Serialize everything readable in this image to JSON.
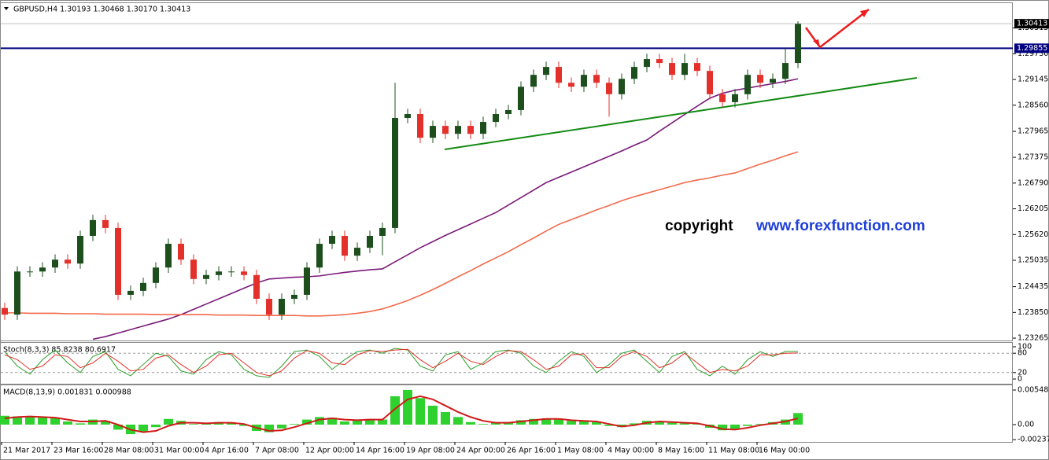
{
  "header": "GBPUSD,H4  1.30193 1.30468 1.30170 1.30413",
  "copyright": {
    "word": "copyright",
    "site": "www.forexfunction.com"
  },
  "chart_data": [
    {
      "type": "candlestick",
      "categories": [
        "21 Mar 2017",
        null,
        null,
        null,
        "23 Mar 16:00",
        null,
        null,
        null,
        "28 Mar 08:00",
        null,
        null,
        null,
        "31 Mar 00:00",
        null,
        null,
        null,
        "4 Apr 16:00",
        null,
        null,
        null,
        "7 Apr 08:00",
        null,
        null,
        null,
        "12 Apr 00:00",
        null,
        null,
        null,
        "14 Apr 16:00",
        null,
        null,
        null,
        "19 Apr 08:00",
        null,
        null,
        null,
        "24 Apr 00:00",
        null,
        null,
        null,
        "26 Apr 16:00",
        null,
        null,
        null,
        "1 May 08:00",
        null,
        null,
        null,
        "4 May 00:00",
        null,
        null,
        null,
        "8 May 16:00",
        null,
        null,
        null,
        "11 May 08:00",
        null,
        null,
        null,
        "16 May 00:00",
        null,
        null,
        null
      ],
      "open": [
        1.2395,
        1.238,
        1.2478,
        1.2478,
        1.2487,
        1.2505,
        1.2496,
        1.2559,
        1.2595,
        1.2577,
        1.2425,
        1.2434,
        1.2452,
        1.2487,
        1.2541,
        1.2505,
        1.2461,
        1.247,
        1.2478,
        1.2478,
        1.247,
        1.2416,
        1.238,
        1.2416,
        1.2425,
        1.2487,
        1.2541,
        1.2559,
        1.2514,
        1.2532,
        1.2559,
        1.2577,
        1.2827,
        1.2836,
        1.2782,
        1.2809,
        1.2791,
        1.2809,
        1.2791,
        1.2818,
        1.2836,
        1.2845,
        1.2898,
        1.2925,
        1.2943,
        1.2907,
        1.2898,
        1.2925,
        1.2907,
        1.2881,
        1.2916,
        1.2943,
        1.2961,
        1.2952,
        1.2925,
        1.2952,
        1.2934,
        1.2881,
        1.2863,
        1.2881,
        1.2925,
        1.2907,
        1.2916,
        1.2952
      ],
      "high": [
        1.2407,
        1.249,
        1.249,
        1.2499,
        1.2517,
        1.2517,
        1.2571,
        1.2607,
        1.2607,
        1.2589,
        1.2446,
        1.2464,
        1.2499,
        1.2553,
        1.2553,
        1.2517,
        1.2482,
        1.249,
        1.249,
        1.249,
        1.2482,
        1.2428,
        1.2428,
        1.2437,
        1.2499,
        1.2553,
        1.2571,
        1.2571,
        1.2544,
        1.2571,
        1.2589,
        1.2907,
        1.2848,
        1.2848,
        1.2821,
        1.2821,
        1.2821,
        1.2821,
        1.283,
        1.2848,
        1.2857,
        1.291,
        1.2937,
        1.2955,
        1.2955,
        1.2919,
        1.2937,
        1.2937,
        1.2919,
        1.2928,
        1.2955,
        1.2973,
        1.2973,
        1.2964,
        1.2973,
        1.2964,
        1.2946,
        1.2893,
        1.2893,
        1.2937,
        1.2937,
        1.2928,
        1.2985,
        1.3047
      ],
      "low": [
        1.2368,
        1.2368,
        1.2466,
        1.2466,
        1.2475,
        1.2484,
        1.2484,
        1.2547,
        1.2565,
        1.2413,
        1.2413,
        1.2422,
        1.244,
        1.2475,
        1.2493,
        1.2449,
        1.2449,
        1.2458,
        1.2466,
        1.2458,
        1.2404,
        1.2368,
        1.2368,
        1.2404,
        1.2413,
        1.2475,
        1.2529,
        1.2502,
        1.2502,
        1.252,
        1.2515,
        1.2565,
        1.2815,
        1.277,
        1.277,
        1.2779,
        1.2779,
        1.2779,
        1.2779,
        1.2806,
        1.2824,
        1.2833,
        1.2886,
        1.2913,
        1.2895,
        1.2886,
        1.2886,
        1.2895,
        1.283,
        1.2869,
        1.2904,
        1.2931,
        1.294,
        1.2913,
        1.2913,
        1.2922,
        1.2869,
        1.2851,
        1.2851,
        1.2869,
        1.2895,
        1.2895,
        1.2904,
        1.294
      ],
      "close": [
        1.238,
        1.2478,
        1.2478,
        1.2487,
        1.2505,
        1.2496,
        1.2559,
        1.2595,
        1.2577,
        1.2425,
        1.2434,
        1.2452,
        1.2487,
        1.2541,
        1.2505,
        1.2461,
        1.247,
        1.2478,
        1.2478,
        1.247,
        1.2416,
        1.238,
        1.2416,
        1.2425,
        1.2487,
        1.2541,
        1.2559,
        1.2514,
        1.2532,
        1.2559,
        1.2577,
        1.2827,
        1.2836,
        1.2782,
        1.2809,
        1.2791,
        1.2809,
        1.2791,
        1.2818,
        1.2836,
        1.2845,
        1.2898,
        1.2925,
        1.2943,
        1.2907,
        1.2898,
        1.2925,
        1.2907,
        1.2881,
        1.2916,
        1.2943,
        1.2961,
        1.2952,
        1.2925,
        1.2952,
        1.2934,
        1.2881,
        1.2863,
        1.2881,
        1.2925,
        1.2907,
        1.2916,
        1.2952,
        1.3041
      ],
      "up_color": "#1d4f1d",
      "down_color": "#e3302a",
      "lines": [
        {
          "color": "#7a1b7a",
          "values": [
            null,
            null,
            null,
            null,
            null,
            null,
            null,
            1.2324,
            1.233,
            1.2338,
            1.2346,
            1.2354,
            1.2362,
            1.237,
            1.238,
            1.2392,
            1.2404,
            1.2416,
            1.2428,
            1.244,
            1.2452,
            1.2461,
            1.2463,
            1.2465,
            1.2466,
            1.2468,
            1.2472,
            1.2476,
            1.2479,
            1.2482,
            1.2484,
            1.25,
            1.2516,
            1.2532,
            1.2546,
            1.256,
            1.2573,
            1.2586,
            1.2599,
            1.2612,
            1.2629,
            1.2646,
            1.2663,
            1.268,
            1.2692,
            1.2704,
            1.2716,
            1.2728,
            1.274,
            1.2752,
            1.2765,
            1.2777,
            1.2797,
            1.2816,
            1.2835,
            1.2854,
            1.2872,
            1.2883,
            1.289,
            1.2895,
            1.29,
            1.2905,
            1.291,
            1.2916
          ]
        },
        {
          "color": "#f26a4b",
          "values": [
            1.2384,
            1.2384,
            1.2383,
            1.2383,
            1.2383,
            1.2382,
            1.2382,
            1.2382,
            1.2381,
            1.2381,
            1.2381,
            1.2381,
            1.238,
            1.238,
            1.238,
            1.238,
            1.238,
            1.2379,
            1.2379,
            1.2379,
            1.2378,
            1.2378,
            1.2378,
            1.2378,
            1.2377,
            1.2377,
            1.2378,
            1.238,
            1.2383,
            1.2387,
            1.2393,
            1.2402,
            1.2412,
            1.2424,
            1.2437,
            1.2451,
            1.2466,
            1.248,
            1.2495,
            1.2509,
            1.2523,
            1.2539,
            1.2554,
            1.257,
            1.2585,
            1.2596,
            1.2607,
            1.2618,
            1.2628,
            1.2639,
            1.2648,
            1.2656,
            1.2664,
            1.2672,
            1.268,
            1.2686,
            1.2691,
            1.2697,
            1.2702,
            1.2712,
            1.2722,
            1.2731,
            1.2741,
            1.275
          ]
        }
      ],
      "hlines": [
        {
          "value": 1.30413,
          "label": "1.30413",
          "color": "#c0c0c0",
          "box": "#000000",
          "width": 1
        },
        {
          "value": 1.29855,
          "label": "1.29855",
          "color": "#000080",
          "box": "#000080",
          "width": 2
        }
      ],
      "ylim": [
        1.2323,
        1.3088
      ],
      "yticks": [
        {
          "value": 1.23265,
          "label": "1.23265"
        },
        {
          "value": 1.2385,
          "label": "1.23850"
        },
        {
          "value": 1.24435,
          "label": "1.24435"
        },
        {
          "value": 1.25035,
          "label": "1.25035"
        },
        {
          "value": 1.2562,
          "label": "1.25620"
        },
        {
          "value": 1.26205,
          "label": "1.26205"
        },
        {
          "value": 1.2679,
          "label": "1.26790"
        },
        {
          "value": 1.27375,
          "label": "1.27375"
        },
        {
          "value": 1.27965,
          "label": "1.27965"
        },
        {
          "value": 1.2856,
          "label": "1.28560"
        },
        {
          "value": 1.29145,
          "label": "1.29145"
        },
        {
          "value": 1.2973,
          "label": "1.29730"
        },
        {
          "value": 1.30315,
          "label": "1.30315"
        }
      ]
    },
    {
      "type": "line",
      "label": "Stoch(8,3,3) 85.8238 80.6917",
      "series": [
        {
          "type": "line",
          "color": "#2ca02c",
          "values": [
            85,
            40,
            15,
            60,
            90,
            50,
            20,
            70,
            85,
            30,
            10,
            45,
            80,
            70,
            25,
            15,
            60,
            85,
            75,
            30,
            10,
            5,
            40,
            85,
            90,
            70,
            30,
            60,
            85,
            90,
            80,
            95,
            90,
            40,
            25,
            75,
            85,
            30,
            50,
            85,
            90,
            80,
            40,
            20,
            55,
            85,
            70,
            20,
            45,
            80,
            90,
            55,
            20,
            70,
            85,
            30,
            10,
            40,
            15,
            60,
            85,
            70,
            85,
            85.8238
          ]
        },
        {
          "type": "line",
          "color": "#e3302a",
          "values": [
            75,
            60,
            30,
            40,
            75,
            70,
            35,
            50,
            80,
            55,
            25,
            30,
            65,
            75,
            45,
            20,
            40,
            75,
            80,
            50,
            20,
            10,
            25,
            65,
            88,
            80,
            50,
            45,
            75,
            88,
            85,
            90,
            92,
            60,
            35,
            55,
            80,
            55,
            45,
            70,
            88,
            85,
            60,
            30,
            40,
            75,
            78,
            35,
            35,
            70,
            85,
            70,
            35,
            50,
            80,
            50,
            20,
            30,
            25,
            40,
            75,
            75,
            80,
            80.6917
          ]
        }
      ],
      "levels": [
        80,
        20
      ],
      "ylim": [
        -14.6,
        112.2
      ],
      "yticks": [
        0,
        20,
        80,
        100
      ]
    },
    {
      "type": "bar",
      "label": "MACD(8,13,9) 0.001831 0.000988",
      "series": [
        {
          "type": "bar",
          "color": "#2ed12e",
          "values": [
            0.0014,
            0.0013,
            0.0012,
            0.0011,
            0.001,
            0.0005,
            0.0002,
            0.0008,
            0.0006,
            -0.0008,
            -0.0015,
            -0.0012,
            -0.0004,
            0.0009,
            0.0006,
            0.0001,
            0.0003,
            0.0004,
            0.0003,
            -0.0002,
            -0.001,
            -0.0012,
            -0.0006,
            0.0001,
            0.0008,
            0.0012,
            0.0011,
            0.0005,
            0.0007,
            0.0009,
            0.0008,
            0.0045,
            0.0055,
            0.0042,
            0.003,
            0.002,
            0.0012,
            0.0004,
            0.0001,
            0.0003,
            0.0004,
            0.0007,
            0.0009,
            0.001,
            0.0008,
            0.0006,
            0.0005,
            0.0004,
            -0.0002,
            -0.0004,
            0.0002,
            0.0006,
            0.0005,
            0.0003,
            0.0002,
            0.0001,
            -0.0005,
            -0.0009,
            -0.0008,
            -0.0002,
            0.0001,
            0.0004,
            0.0008,
            0.001831
          ]
        },
        {
          "type": "line",
          "color": "#d11a1a",
          "values": [
            0.001,
            0.0012,
            0.0013,
            0.0012,
            0.0011,
            0.0008,
            0.0005,
            0.0005,
            0.0006,
            0.0,
            -0.0008,
            -0.0012,
            -0.001,
            -0.0002,
            0.0003,
            0.0003,
            0.0002,
            0.0003,
            0.0003,
            0.0001,
            -0.0005,
            -0.001,
            -0.0009,
            -0.0004,
            0.0002,
            0.0008,
            0.001,
            0.0008,
            0.0007,
            0.0008,
            0.0008,
            0.0025,
            0.004,
            0.0045,
            0.004,
            0.003,
            0.002,
            0.0012,
            0.0006,
            0.0003,
            0.0003,
            0.0005,
            0.0007,
            0.0009,
            0.0009,
            0.0007,
            0.0006,
            0.0005,
            0.0001,
            -0.0003,
            -0.0001,
            0.0003,
            0.0005,
            0.0004,
            0.0003,
            0.0002,
            -0.0002,
            -0.0007,
            -0.0008,
            -0.0005,
            -0.0001,
            0.0002,
            0.0005,
            0.000988
          ]
        }
      ],
      "ylim": [
        -0.00274,
        0.00623
      ],
      "yticks": [
        {
          "value": -0.002379,
          "label": "-0.002379"
        },
        {
          "value": 0,
          "label": "0.00"
        },
        0.005483
      ]
    }
  ]
}
